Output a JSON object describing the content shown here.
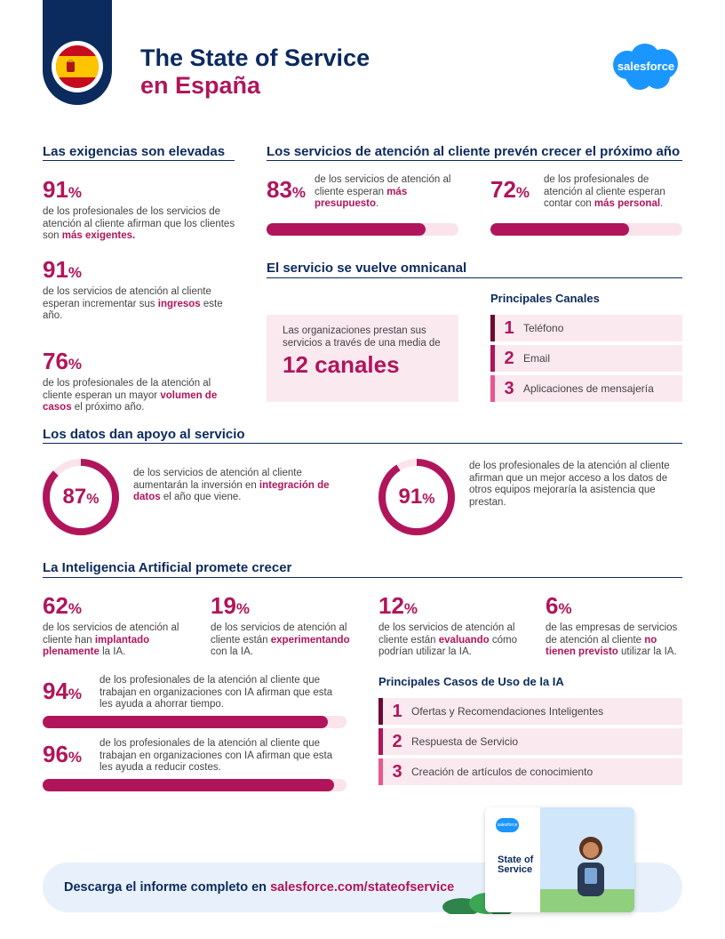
{
  "header": {
    "title_line1": "The State of Service",
    "title_line2": "en España",
    "brand": "salesforce"
  },
  "demands": {
    "title": "Las exigencias son elevadas",
    "stats": [
      {
        "value": "91",
        "unit": "%",
        "text_pre": "de los profesionales de los servicios de atención al cliente afirman que los clientes son ",
        "highlight": "más exigentes.",
        "text_post": ""
      },
      {
        "value": "91",
        "unit": "%",
        "text_pre": "de los servicios de atención al cliente esperan incrementar sus ",
        "highlight": "ingresos",
        "text_post": " este año."
      },
      {
        "value": "76",
        "unit": "%",
        "text_pre": "de los profesionales de la atención al cliente esperan un mayor ",
        "highlight": "volumen de casos",
        "text_post": " el próximo año."
      }
    ]
  },
  "growth": {
    "title": "Los servicios de atención al cliente prevén crecer el próximo año",
    "stats": [
      {
        "value": "83",
        "unit": "%",
        "text_pre": "de los servicios de atención al cliente esperan ",
        "highlight": "más presupuesto",
        "text_post": ".",
        "progress": 0.83
      },
      {
        "value": "72",
        "unit": "%",
        "text_pre": "de los profesionales de atención al cliente esperan contar con ",
        "highlight": "más personal",
        "text_post": ".",
        "progress": 0.72
      }
    ]
  },
  "omni": {
    "title": "El servicio se vuelve omnicanal",
    "box_text": "Las organizaciones prestan sus servicios a través de una media de",
    "box_value": "12 canales",
    "channels_title": "Principales Canales",
    "channels": [
      {
        "num": "1",
        "label": "Teléfono",
        "color": "#6b0a33"
      },
      {
        "num": "2",
        "label": "Email",
        "color": "#b0155b"
      },
      {
        "num": "3",
        "label": "Aplicaciones de mensajería",
        "color": "#e8578f"
      }
    ]
  },
  "data_support": {
    "title": "Los datos dan apoyo al servicio",
    "stats": [
      {
        "value": "87",
        "unit": "%",
        "fraction": 0.87,
        "text_pre": "de los servicios de atención al cliente aumentarán la inversión en ",
        "highlight": "integración de datos",
        "text_post": " el año que viene."
      },
      {
        "value": "91",
        "unit": "%",
        "fraction": 0.91,
        "text_pre": "de los profesionales de la atención al cliente afirman que un mejor acceso a los datos de otros equipos mejoraría la asistencia que prestan.",
        "highlight": "",
        "text_post": ""
      }
    ]
  },
  "ai": {
    "title": "La Inteligencia Artificial promete crecer",
    "adoption": [
      {
        "value": "62",
        "unit": "%",
        "text_pre": "de los servicios de atención al cliente han ",
        "highlight": "implantado plenamente",
        "text_post": " la IA."
      },
      {
        "value": "19",
        "unit": "%",
        "text_pre": "de los servicios de atención al cliente están ",
        "highlight": "experimentando",
        "text_post": " con la IA."
      },
      {
        "value": "12",
        "unit": "%",
        "text_pre": "de los servicios de atención al cliente están ",
        "highlight": "evaluando",
        "text_post": " cómo podrían utilizar la IA."
      },
      {
        "value": "6",
        "unit": "%",
        "text_pre": "de las empresas de servicios de atención al cliente ",
        "highlight": "no tienen previsto",
        "text_post": " utilizar la IA."
      }
    ],
    "benefits": [
      {
        "value": "94",
        "unit": "%",
        "text": "de los profesionales de la atención al cliente que trabajan en organizaciones con IA afirman que esta les ayuda a ahorrar tiempo.",
        "progress": 0.94
      },
      {
        "value": "96",
        "unit": "%",
        "text": "de los profesionales de la atención al cliente que trabajan en organizaciones con IA afirman que esta les ayuda a reducir costes.",
        "progress": 0.96
      }
    ],
    "use_cases_title": "Principales Casos de Uso de la IA",
    "use_cases": [
      {
        "num": "1",
        "label": "Ofertas y Recomendaciones Inteligentes",
        "color": "#6b0a33"
      },
      {
        "num": "2",
        "label": "Respuesta de Servicio",
        "color": "#b0155b"
      },
      {
        "num": "3",
        "label": "Creación de artículos de conocimiento",
        "color": "#e8578f"
      }
    ]
  },
  "footer": {
    "cta_text": "Descarga el informe completo en ",
    "cta_link": "salesforce.com/stateofservice",
    "report_cover_title": "State of Service",
    "report_cover_brand": "salesforce"
  }
}
